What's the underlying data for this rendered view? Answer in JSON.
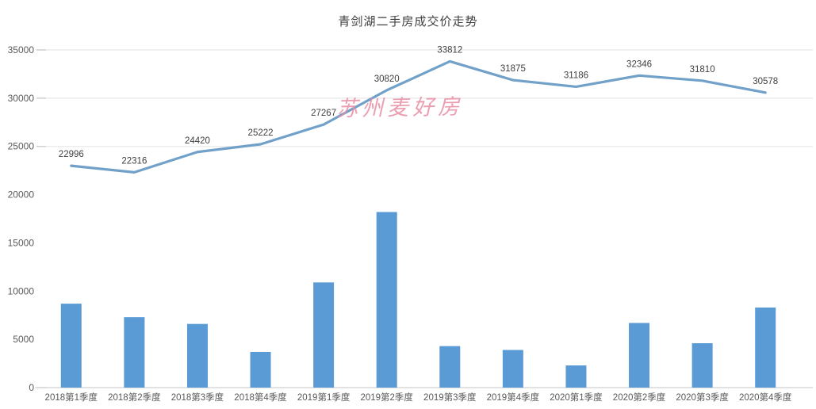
{
  "title": "青剑湖二手房成交价走势",
  "watermark": {
    "text": "苏州麦好房",
    "color": "#e98da3"
  },
  "colors": {
    "bar": "#5b9bd5",
    "line": "#71a0c9",
    "grid": "#ececec",
    "axis": "#d9d9d9",
    "tick_label": "#595959",
    "data_label": "#404040",
    "title": "#3f3f3f"
  },
  "chart_data": {
    "type": "combo: line + bar",
    "title": "青剑湖二手房成交价走势",
    "categories": [
      "2018第1季度",
      "2018第2季度",
      "2018第3季度",
      "2018第4季度",
      "2019第1季度",
      "2019第2季度",
      "2019第3季度",
      "2019第4季度",
      "2020第1季度",
      "2020第2季度",
      "2020第3季度",
      "2020第4季度"
    ],
    "series": [
      {
        "type": "line",
        "values": [
          22996,
          22316,
          24420,
          25222,
          27267,
          30820,
          33812,
          31875,
          31186,
          32346,
          31810,
          30578
        ],
        "data_labels": [
          "22996",
          "22316",
          "24420",
          "25222",
          "27267",
          "30820",
          "33812",
          "31875",
          "31186",
          "32346",
          "31810",
          "30578"
        ]
      },
      {
        "type": "bar",
        "values": [
          8700,
          7300,
          6600,
          3700,
          10900,
          18200,
          4300,
          3900,
          2300,
          6700,
          4600,
          8300
        ]
      }
    ],
    "xlabel": "",
    "ylabel": "",
    "ylim": [
      0,
      35000
    ],
    "yticks": [
      0,
      5000,
      10000,
      15000,
      20000,
      25000,
      30000,
      35000
    ],
    "visible_gridlines": [
      25000,
      30000,
      35000
    ],
    "tick_marks": [
      0,
      25000,
      30000,
      35000
    ],
    "legend": "none",
    "grid": "horizontal (upper region only)"
  }
}
